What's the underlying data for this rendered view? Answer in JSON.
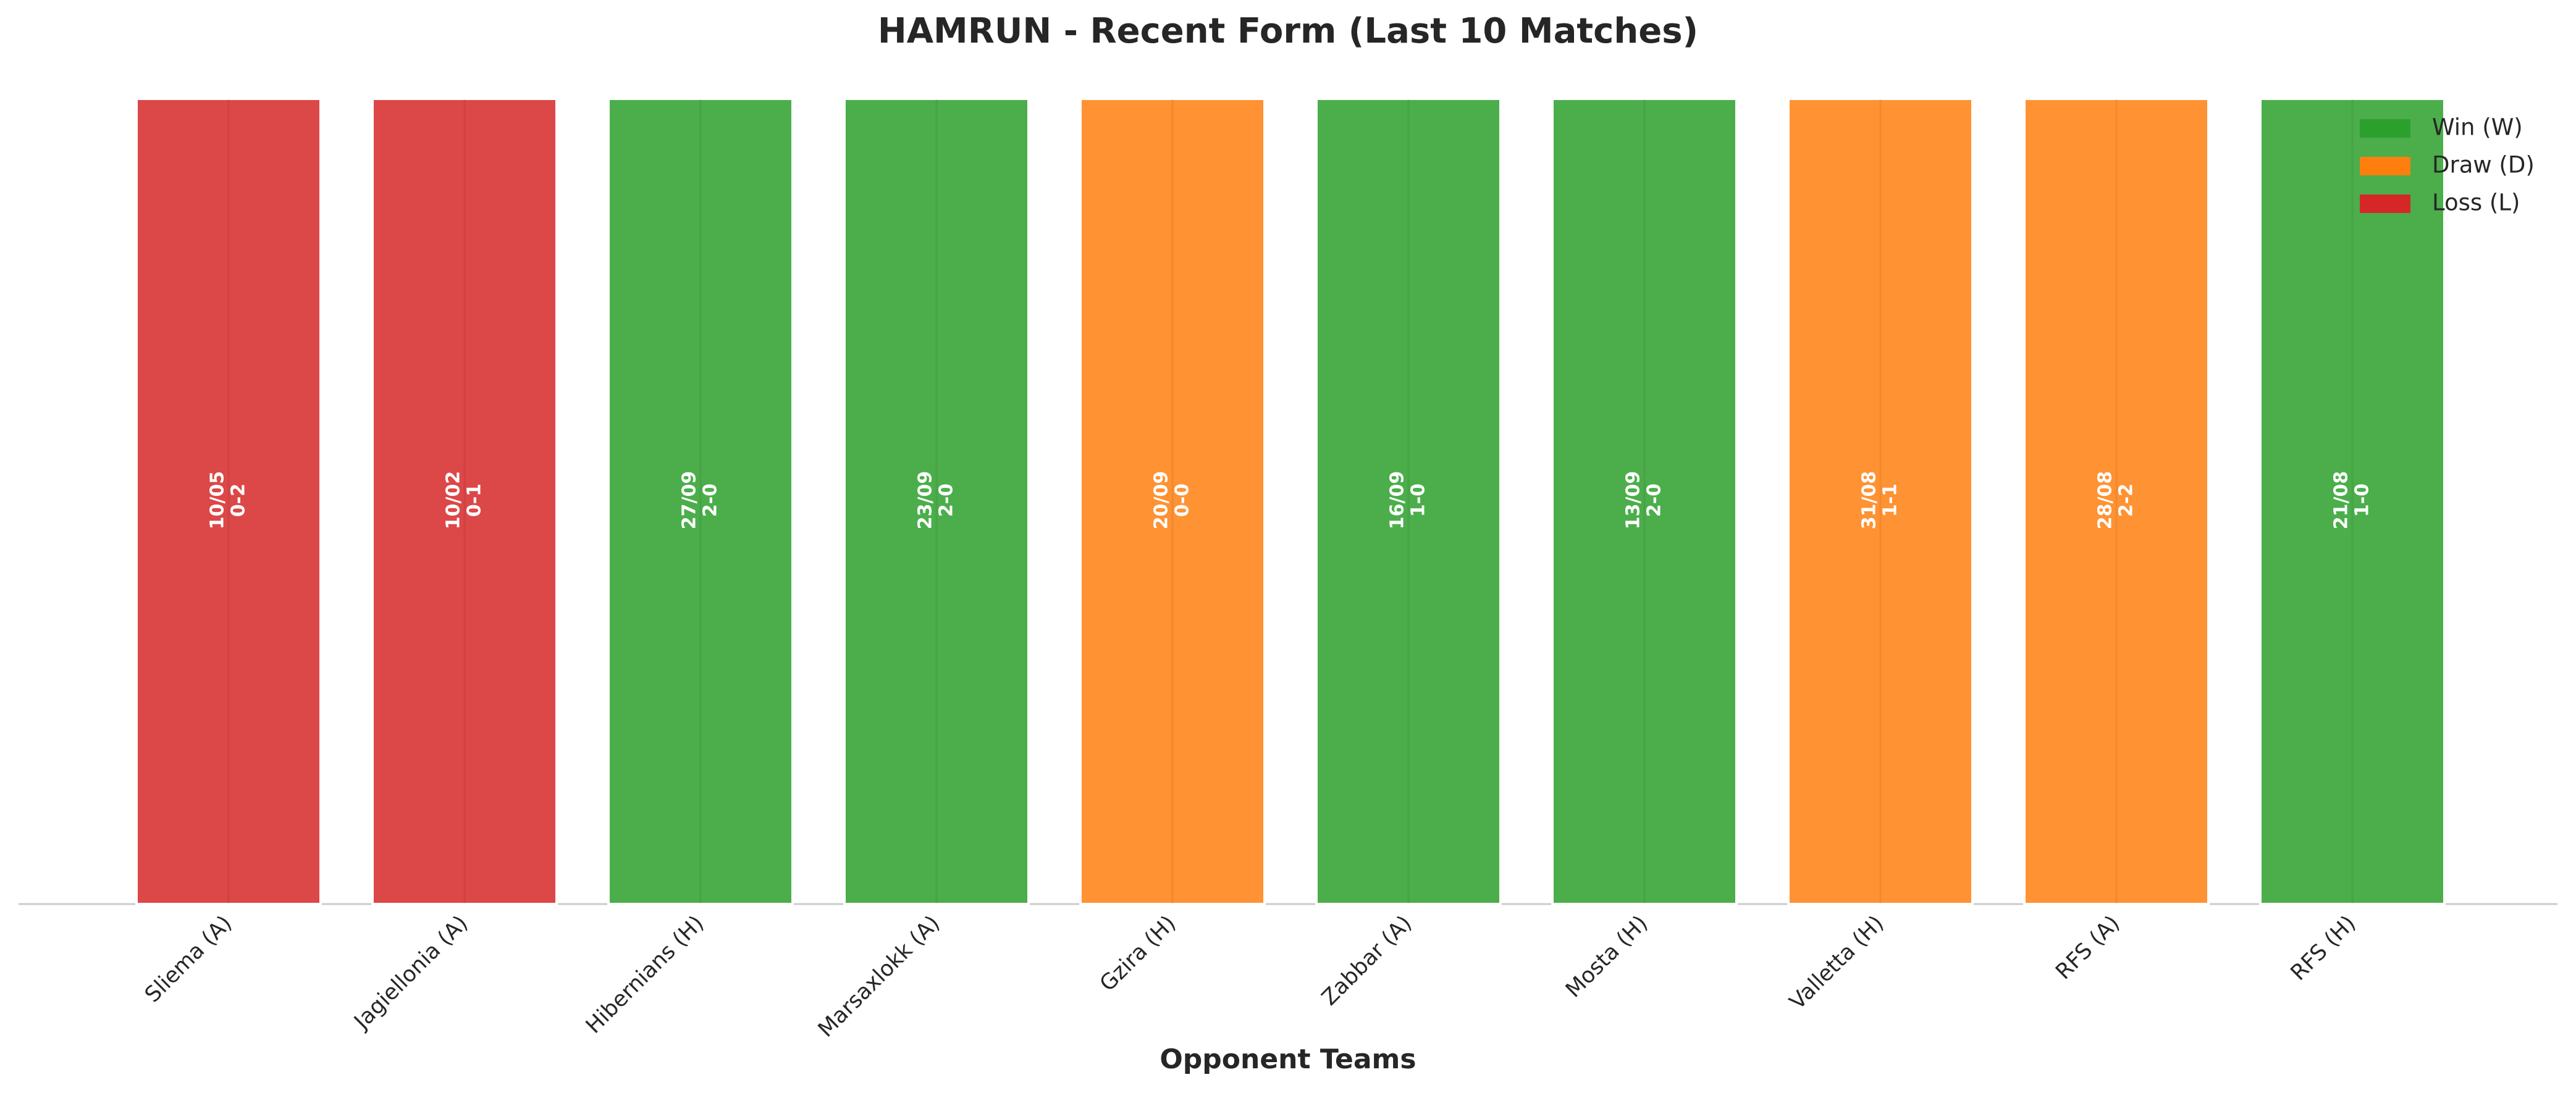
{
  "chart_data": {
    "type": "bar",
    "title": "HAMRUN - Recent Form (Last 10 Matches)",
    "x_label": "Opponent Teams",
    "categories": [
      "Sliema (A)",
      "Jagiellonia (A)",
      "Hibernians (H)",
      "Marsaxlokk (A)",
      "Gzira (H)",
      "Zabbar (A)",
      "Mosta (H)",
      "Valletta (H)",
      "RFS (A)",
      "RFS (H)"
    ],
    "values": [
      1,
      1,
      1,
      1,
      1,
      1,
      1,
      1,
      1,
      1
    ],
    "dates": [
      "10/05",
      "10/02",
      "27/09",
      "23/09",
      "20/09",
      "16/09",
      "13/09",
      "31/08",
      "28/08",
      "21/08"
    ],
    "scores": [
      "0-2",
      "0-1",
      "2-0",
      "2-0",
      "0-0",
      "1-0",
      "2-0",
      "1-1",
      "2-2",
      "1-0"
    ],
    "colors": [
      "#d62728",
      "#d62728",
      "#2ca02c",
      "#2ca02c",
      "#ff7f0e",
      "#2ca02c",
      "#2ca02c",
      "#ff7f0e",
      "#ff7f0e",
      "#2ca02c"
    ],
    "ylim": [
      0,
      1
    ],
    "legend": [
      {
        "name": "Win (W)",
        "color": "#2ca02c"
      },
      {
        "name": "Draw (D)",
        "color": "#ff7f0e"
      },
      {
        "name": "Loss (L)",
        "color": "#d62728"
      }
    ],
    "legend_position": "upper right"
  }
}
